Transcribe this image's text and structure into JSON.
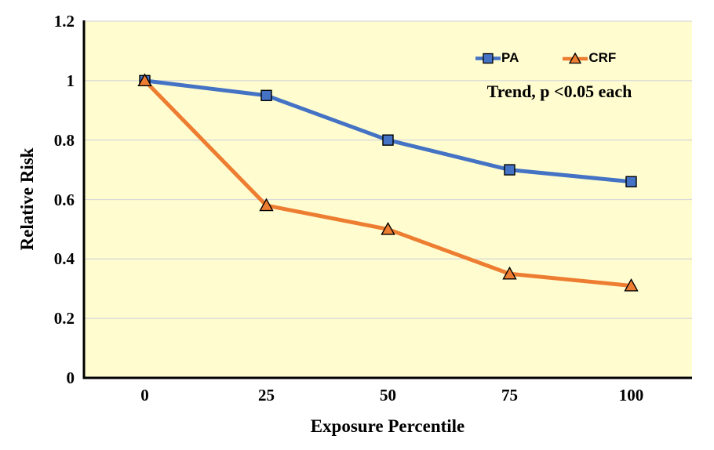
{
  "figure": {
    "background_color": "#FFFFFF",
    "plot_background_color": "#FFFDCF",
    "gridline_color": "#D9D9D9",
    "axis_line_color": "#000000",
    "text_color": "#000000"
  },
  "chart_data": {
    "type": "line",
    "title": "",
    "xlabel": "Exposure Percentile",
    "ylabel": "Relative Risk",
    "categories": [
      0,
      25,
      50,
      75,
      100
    ],
    "x_tick_labels": [
      "0",
      "25",
      "50",
      "75",
      "100"
    ],
    "y_ticks": [
      0,
      0.2,
      0.4,
      0.6,
      0.8,
      1,
      1.2
    ],
    "y_tick_labels": [
      "0",
      "0.2",
      "0.4",
      "0.6",
      "0.8",
      "1",
      "1.2"
    ],
    "ylim": [
      0,
      1.2
    ],
    "grid": "horizontal",
    "legend_position": "inside-top-right",
    "series": [
      {
        "name": "PA",
        "color": "#4472C4",
        "marker": "square",
        "values": [
          1.0,
          0.95,
          0.8,
          0.7,
          0.66
        ]
      },
      {
        "name": "CRF",
        "color": "#ED7D31",
        "marker": "triangle",
        "values": [
          1.0,
          0.58,
          0.5,
          0.35,
          0.31
        ]
      }
    ],
    "annotation": "Trend, p <0.05 each"
  }
}
